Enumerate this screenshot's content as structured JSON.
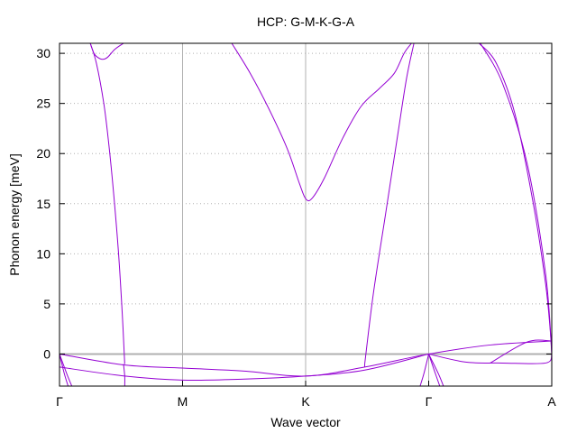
{
  "chart_data": {
    "type": "line",
    "title": "HCP: G-M-K-G-A",
    "xlabel": "Wave vector",
    "ylabel": "Phonon energy [meV]",
    "xlim": [
      0,
      4
    ],
    "ylim": [
      -3.2,
      31
    ],
    "x_ticks": [
      {
        "x": 0,
        "label": "Γ"
      },
      {
        "x": 1,
        "label": "M"
      },
      {
        "x": 2,
        "label": "K"
      },
      {
        "x": 3,
        "label": "Γ"
      },
      {
        "x": 4,
        "label": "A"
      }
    ],
    "y_ticks": [
      0,
      5,
      10,
      15,
      20,
      25,
      30
    ],
    "grid": {
      "x": "solid vertical lines at high-symmetry points",
      "y": "dotted"
    },
    "zero_line": 0,
    "colors": {
      "bands": "#9400d3",
      "zero_line": "#b0b0b0",
      "grid": "#b0b0b0"
    },
    "series": [
      {
        "x": [
          0.25,
          0.28,
          0.31,
          0.35,
          0.39,
          0.45,
          0.52
        ],
        "values": [
          31.0,
          30.0,
          29.6,
          29.4,
          29.6,
          30.4,
          31.0
        ]
      },
      {
        "x": [
          0.25,
          0.3,
          0.36,
          0.4,
          0.44,
          0.48,
          0.51,
          0.53
        ],
        "values": [
          31.0,
          29.0,
          25.0,
          21.0,
          16.0,
          10.0,
          4.0,
          -1.0
        ]
      },
      {
        "x": [
          1.4,
          1.55,
          1.7,
          1.85,
          1.95,
          2.0,
          2.05,
          2.15,
          2.3,
          2.45,
          2.6,
          2.72,
          2.8,
          2.86
        ],
        "values": [
          31.0,
          28.0,
          24.5,
          20.5,
          17.0,
          15.5,
          15.5,
          17.5,
          21.5,
          24.7,
          26.5,
          28.0,
          30.0,
          31.0
        ]
      },
      {
        "x": [
          2.48,
          2.55,
          2.65,
          2.75,
          2.82,
          2.88
        ],
        "values": [
          -1.0,
          6.0,
          14.0,
          22.0,
          27.5,
          31.0
        ]
      },
      {
        "x": [
          3.41,
          3.55,
          3.7,
          3.85,
          3.95,
          3.99,
          4.0
        ],
        "values": [
          31.0,
          29.0,
          24.0,
          15.0,
          7.0,
          2.0,
          0.0
        ]
      },
      {
        "x": [
          3.42,
          3.6,
          3.8,
          3.95,
          4.0
        ],
        "values": [
          31.0,
          27.0,
          19.0,
          8.0,
          0.0
        ]
      },
      {
        "x": [
          0,
          0.53,
          1.0,
          1.5,
          2.0,
          2.48,
          3.0,
          3.5,
          4.0
        ],
        "values": [
          0,
          -1.1,
          -1.4,
          -1.7,
          -2.2,
          -1.3,
          0,
          0.9,
          1.3
        ]
      },
      {
        "x": [
          0,
          0.53,
          1.0,
          1.5,
          2.0,
          2.48,
          3.0
        ],
        "values": [
          -1.3,
          -2.2,
          -2.6,
          -2.5,
          -2.2,
          -1.6,
          0
        ]
      },
      {
        "x": [
          3.0,
          3.3,
          3.6,
          3.95,
          4.0
        ],
        "values": [
          0,
          -0.8,
          -0.9,
          -0.9,
          0
        ]
      },
      {
        "x": [
          3.5,
          3.8,
          4.0
        ],
        "values": [
          -0.9,
          1.2,
          1.3
        ]
      },
      {
        "x": [
          0,
          0.06,
          0.1
        ],
        "values": [
          0,
          -2.0,
          -3.2
        ]
      },
      {
        "x": [
          0,
          0.04,
          0.07
        ],
        "values": [
          0,
          -2.0,
          -3.2
        ]
      },
      {
        "x": [
          3.0,
          2.96,
          2.93
        ],
        "values": [
          0,
          -2.0,
          -3.2
        ]
      },
      {
        "x": [
          3.0,
          3.08,
          3.12
        ],
        "values": [
          0,
          -2.0,
          -3.2
        ]
      },
      {
        "x": [
          3.0,
          3.05,
          3.09
        ],
        "values": [
          0,
          -1.8,
          -3.2
        ]
      },
      {
        "x": [
          0.52,
          0.53,
          0.53
        ],
        "values": [
          -1.0,
          -2.2,
          -3.2
        ]
      },
      {
        "x": [
          2.48,
          2.48
        ],
        "values": [
          -1.3,
          -1.0
        ]
      }
    ]
  }
}
